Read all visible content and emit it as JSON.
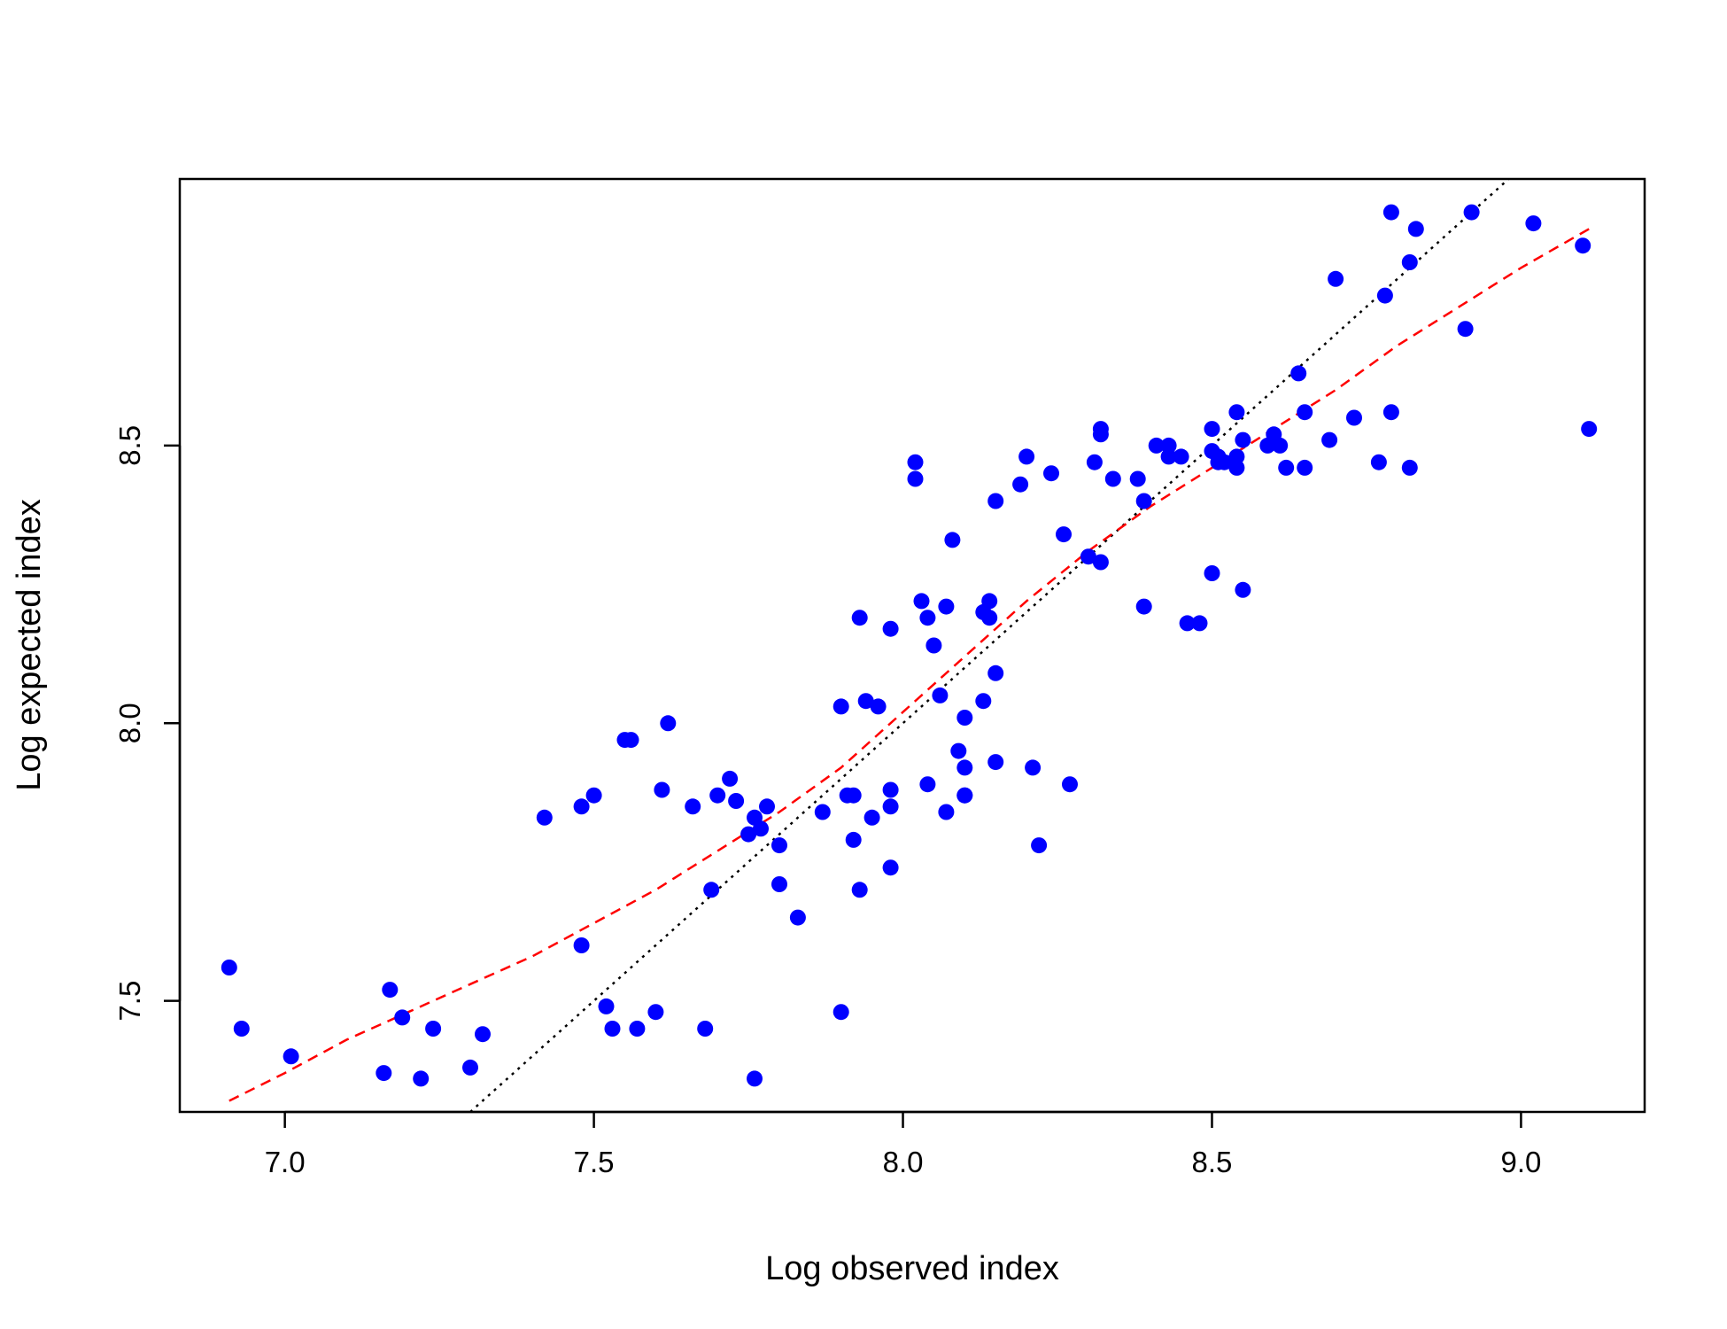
{
  "chart_data": {
    "type": "scatter",
    "title": "",
    "xlabel": "Log observed index",
    "ylabel": "Log expected index",
    "xlim": [
      6.83,
      9.2
    ],
    "ylim": [
      7.3,
      8.98
    ],
    "x_ticks": [
      7.0,
      7.5,
      8.0,
      8.5,
      9.0
    ],
    "x_tick_labels": [
      "7.0",
      "7.5",
      "8.0",
      "8.5",
      "9.0"
    ],
    "y_ticks": [
      7.5,
      8.0,
      8.5
    ],
    "y_tick_labels": [
      "7.5",
      "8.0",
      "8.5"
    ],
    "grid": false,
    "legend": "none",
    "colors": {
      "points": "#0000ff",
      "smooth_line": "#ff0000",
      "reference_line": "#000000"
    },
    "series": [
      {
        "kind": "points",
        "x": [
          6.91,
          6.93,
          7.01,
          7.16,
          7.17,
          7.19,
          7.22,
          7.24,
          7.3,
          7.32,
          7.42,
          7.48,
          7.48,
          7.5,
          7.52,
          7.53,
          7.55,
          7.56,
          7.57,
          7.6,
          7.61,
          7.62,
          7.66,
          7.68,
          7.69,
          7.7,
          7.72,
          7.73,
          7.75,
          7.76,
          7.76,
          7.77,
          7.78,
          7.8,
          7.8,
          7.83,
          7.87,
          7.9,
          7.9,
          7.91,
          7.92,
          7.92,
          7.93,
          7.93,
          7.94,
          7.95,
          7.96,
          7.98,
          7.98,
          7.98,
          7.98,
          8.02,
          8.02,
          8.03,
          8.04,
          8.04,
          8.05,
          8.06,
          8.07,
          8.07,
          8.08,
          8.09,
          8.1,
          8.1,
          8.1,
          8.1,
          8.13,
          8.13,
          8.14,
          8.14,
          8.15,
          8.15,
          8.15,
          8.19,
          8.2,
          8.21,
          8.22,
          8.24,
          8.26,
          8.27,
          8.3,
          8.31,
          8.32,
          8.32,
          8.32,
          8.34,
          8.38,
          8.39,
          8.39,
          8.41,
          8.43,
          8.43,
          8.45,
          8.46,
          8.48,
          8.5,
          8.5,
          8.5,
          8.51,
          8.51,
          8.52,
          8.54,
          8.54,
          8.54,
          8.55,
          8.55,
          8.59,
          8.6,
          8.61,
          8.62,
          8.64,
          8.65,
          8.65,
          8.69,
          8.7,
          8.73,
          8.77,
          8.78,
          8.79,
          8.79,
          8.82,
          8.82,
          8.83,
          8.91,
          8.92,
          9.02,
          9.1,
          9.11
        ],
        "y": [
          7.56,
          7.45,
          7.4,
          7.37,
          7.52,
          7.47,
          7.36,
          7.45,
          7.38,
          7.44,
          7.83,
          7.6,
          7.85,
          7.87,
          7.49,
          7.45,
          7.97,
          7.97,
          7.45,
          7.48,
          7.88,
          8.0,
          7.85,
          7.45,
          7.7,
          7.87,
          7.9,
          7.86,
          7.8,
          7.36,
          7.83,
          7.81,
          7.85,
          7.78,
          7.71,
          7.65,
          7.84,
          8.03,
          7.48,
          7.87,
          7.87,
          7.79,
          7.7,
          8.19,
          8.04,
          7.83,
          8.03,
          8.17,
          7.88,
          7.85,
          7.74,
          8.47,
          8.44,
          8.22,
          8.19,
          7.89,
          8.14,
          8.05,
          8.21,
          7.84,
          8.33,
          7.95,
          7.87,
          8.01,
          7.87,
          7.92,
          8.04,
          8.2,
          8.22,
          8.19,
          8.09,
          7.93,
          8.4,
          8.43,
          8.48,
          7.92,
          7.78,
          8.45,
          8.34,
          7.89,
          8.3,
          8.47,
          8.52,
          8.53,
          8.29,
          8.44,
          8.44,
          8.4,
          8.21,
          8.5,
          8.5,
          8.48,
          8.48,
          8.18,
          8.18,
          8.53,
          8.27,
          8.49,
          8.48,
          8.47,
          8.47,
          8.56,
          8.46,
          8.48,
          8.51,
          8.24,
          8.5,
          8.52,
          8.5,
          8.46,
          8.63,
          8.56,
          8.46,
          8.51,
          8.8,
          8.55,
          8.47,
          8.77,
          8.92,
          8.56,
          8.83,
          8.46,
          8.89,
          8.71,
          8.92,
          8.9,
          8.86,
          8.53
        ]
      },
      {
        "kind": "smooth-line",
        "style": "dashed",
        "x": [
          6.91,
          7.0,
          7.1,
          7.2,
          7.3,
          7.4,
          7.5,
          7.6,
          7.7,
          7.8,
          7.9,
          8.0,
          8.1,
          8.2,
          8.3,
          8.4,
          8.5,
          8.6,
          8.7,
          8.8,
          8.9,
          9.0,
          9.11
        ],
        "y": [
          7.32,
          7.37,
          7.43,
          7.48,
          7.53,
          7.58,
          7.64,
          7.7,
          7.77,
          7.84,
          7.92,
          8.02,
          8.12,
          8.22,
          8.31,
          8.39,
          8.46,
          8.53,
          8.6,
          8.68,
          8.75,
          8.82,
          8.89
        ]
      },
      {
        "kind": "reference-line",
        "style": "dotted",
        "x": [
          7.3,
          8.98
        ],
        "y": [
          7.3,
          8.98
        ]
      }
    ]
  }
}
